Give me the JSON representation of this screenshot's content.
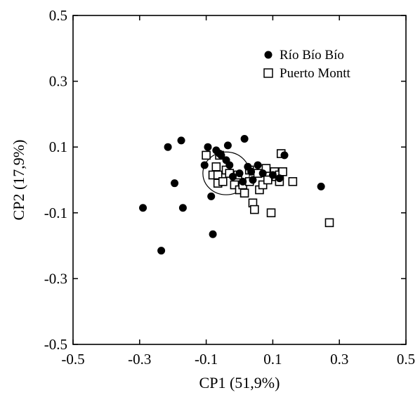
{
  "chart_data": {
    "type": "scatter",
    "xlabel": "CP1 (51,9%)",
    "ylabel": "CP2 (17,9%)",
    "xlim": [
      -0.5,
      0.5
    ],
    "ylim": [
      -0.5,
      0.5
    ],
    "x_ticks": [
      "-0.5",
      "-0.3",
      "-0.1",
      "0.1",
      "0.3",
      "0.5"
    ],
    "y_ticks": [
      "0.5",
      "0.3",
      "0.1",
      "-0.1",
      "-0.3",
      "-0.5"
    ],
    "grid": false,
    "legend_position": "top-right",
    "series": [
      {
        "name": "Río Bío Bío",
        "marker": "filled-circle",
        "color": "#000000",
        "points": [
          {
            "x": -0.29,
            "y": -0.085
          },
          {
            "x": -0.235,
            "y": -0.215
          },
          {
            "x": -0.215,
            "y": 0.1
          },
          {
            "x": -0.195,
            "y": -0.01
          },
          {
            "x": -0.175,
            "y": 0.12
          },
          {
            "x": -0.17,
            "y": -0.085
          },
          {
            "x": -0.105,
            "y": 0.045
          },
          {
            "x": -0.095,
            "y": 0.1
          },
          {
            "x": -0.085,
            "y": -0.05
          },
          {
            "x": -0.08,
            "y": -0.165
          },
          {
            "x": -0.07,
            "y": 0.09
          },
          {
            "x": -0.06,
            "y": 0.08
          },
          {
            "x": -0.055,
            "y": 0.075
          },
          {
            "x": -0.04,
            "y": 0.06
          },
          {
            "x": -0.035,
            "y": 0.105
          },
          {
            "x": -0.03,
            "y": 0.045
          },
          {
            "x": -0.02,
            "y": 0.01
          },
          {
            "x": 0.0,
            "y": 0.02
          },
          {
            "x": 0.01,
            "y": -0.005
          },
          {
            "x": 0.015,
            "y": 0.125
          },
          {
            "x": 0.025,
            "y": 0.04
          },
          {
            "x": 0.035,
            "y": 0.025
          },
          {
            "x": 0.04,
            "y": 0.0
          },
          {
            "x": 0.055,
            "y": 0.045
          },
          {
            "x": 0.07,
            "y": 0.02
          },
          {
            "x": 0.1,
            "y": 0.015
          },
          {
            "x": 0.12,
            "y": 0.005
          },
          {
            "x": 0.135,
            "y": 0.075
          },
          {
            "x": 0.245,
            "y": -0.02
          }
        ]
      },
      {
        "name": "Puerto Montt",
        "marker": "open-square",
        "color": "#000000",
        "points": [
          {
            "x": -0.1,
            "y": 0.075
          },
          {
            "x": -0.08,
            "y": 0.015
          },
          {
            "x": -0.07,
            "y": 0.04
          },
          {
            "x": -0.065,
            "y": 0.015
          },
          {
            "x": -0.065,
            "y": -0.01
          },
          {
            "x": -0.06,
            "y": 0.075
          },
          {
            "x": -0.05,
            "y": -0.005
          },
          {
            "x": -0.04,
            "y": 0.03
          },
          {
            "x": -0.03,
            "y": 0.02
          },
          {
            "x": -0.015,
            "y": -0.015
          },
          {
            "x": -0.005,
            "y": 0.015
          },
          {
            "x": 0.0,
            "y": -0.03
          },
          {
            "x": 0.01,
            "y": -0.015
          },
          {
            "x": 0.015,
            "y": -0.04
          },
          {
            "x": 0.03,
            "y": 0.03
          },
          {
            "x": 0.03,
            "y": -0.005
          },
          {
            "x": 0.04,
            "y": -0.07
          },
          {
            "x": 0.045,
            "y": -0.09
          },
          {
            "x": 0.055,
            "y": 0.02
          },
          {
            "x": 0.06,
            "y": -0.03
          },
          {
            "x": 0.07,
            "y": -0.015
          },
          {
            "x": 0.08,
            "y": 0.035
          },
          {
            "x": 0.085,
            "y": 0.0
          },
          {
            "x": 0.095,
            "y": -0.1
          },
          {
            "x": 0.105,
            "y": 0.025
          },
          {
            "x": 0.11,
            "y": 0.01
          },
          {
            "x": 0.12,
            "y": 0.015
          },
          {
            "x": 0.12,
            "y": -0.005
          },
          {
            "x": 0.125,
            "y": 0.08
          },
          {
            "x": 0.13,
            "y": 0.025
          },
          {
            "x": 0.16,
            "y": -0.005
          },
          {
            "x": 0.27,
            "y": -0.13
          }
        ]
      }
    ],
    "annotations": [
      {
        "type": "ellipse",
        "description": "closed contour around the central cluster",
        "cx": -0.04,
        "cy": 0.02,
        "rx": 0.07,
        "ry": 0.065
      }
    ]
  }
}
